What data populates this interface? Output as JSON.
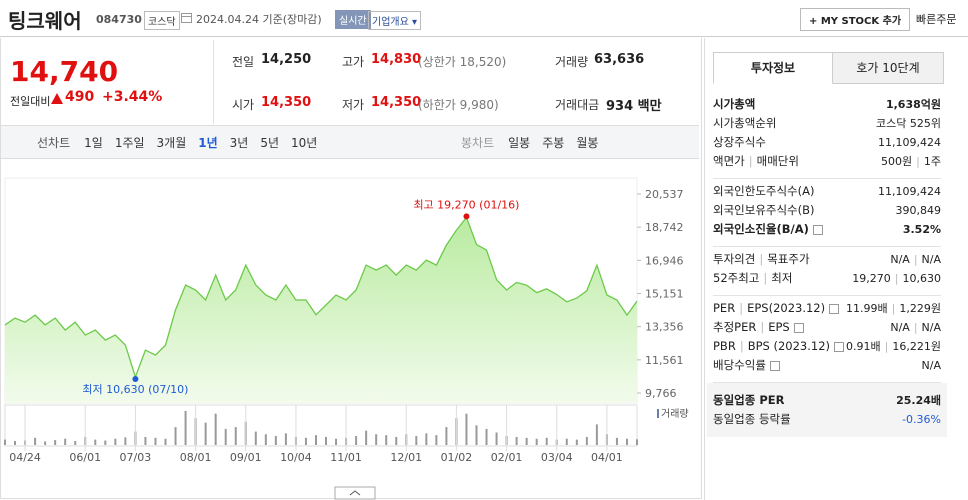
{
  "header": {
    "name": "팅크웨어",
    "code": "084730",
    "market": "코스닥",
    "date": "2024.04.24 기준(장마감)",
    "realtime": "실시간",
    "company_menu": "기업개요",
    "my_stock": "+ MY STOCK 추가",
    "quick_order": "빠른주문"
  },
  "price": {
    "current": "14,740",
    "change_label": "전일대비",
    "change": "490",
    "change_rate": "+3.44%"
  },
  "stats": [
    [
      "전일",
      "14,250"
    ],
    [
      "고가",
      "14,830",
      "(상한가 18,520)"
    ],
    [
      "거래량",
      "63,636"
    ],
    [
      "시가",
      "14,350"
    ],
    [
      "저가",
      "14,350",
      "(하한가 9,980)"
    ],
    [
      "거래대금",
      "934 백만"
    ]
  ],
  "periods": {
    "label": "선차트",
    "items": [
      "1일",
      "1주일",
      "3개월",
      "1년",
      "3년",
      "5년",
      "10년"
    ],
    "selected": 3,
    "candle_label": "봉차트",
    "candle_items": [
      "일봉",
      "주봉",
      "월봉"
    ]
  },
  "chart": {
    "type": "area",
    "color": "#6cc94a",
    "values": [
      13450,
      13820,
      13600,
      13980,
      13450,
      13820,
      13170,
      13600,
      12900,
      13170,
      12630,
      12900,
      12360,
      10630,
      12090,
      11820,
      12360,
      14260,
      15610,
      15340,
      14800,
      16150,
      14800,
      15340,
      16690,
      15610,
      15070,
      14800,
      15610,
      14800,
      14800,
      14000,
      14530,
      15070,
      14800,
      15340,
      16690,
      16420,
      16690,
      16150,
      16690,
      16420,
      16960,
      16690,
      17770,
      18580,
      19270,
      17800,
      17500,
      15900,
      15340,
      15750,
      15600,
      15200,
      15400,
      15100,
      14700,
      14900,
      15300,
      16690,
      15070,
      14800,
      13980,
      14740
    ],
    "volume": [
      60000,
      45000,
      50000,
      80000,
      40000,
      55000,
      70000,
      45000,
      90000,
      60000,
      50000,
      70000,
      85000,
      150000,
      90000,
      80000,
      70000,
      200000,
      380000,
      300000,
      250000,
      350000,
      180000,
      200000,
      260000,
      150000,
      120000,
      100000,
      130000,
      90000,
      80000,
      110000,
      90000,
      70000,
      80000,
      100000,
      160000,
      120000,
      110000,
      90000,
      120000,
      100000,
      130000,
      110000,
      200000,
      300000,
      350000,
      220000,
      180000,
      140000,
      100000,
      90000,
      80000,
      70000,
      80000,
      60000,
      70000,
      60000,
      90000,
      230000,
      120000,
      80000,
      70000,
      63636
    ],
    "volume_label": "거래량",
    "ylim": [
      9766,
      20537
    ],
    "yticks": [
      {
        "value": 9766,
        "label": "9,766"
      },
      {
        "value": 11561,
        "label": "11,561"
      },
      {
        "value": 13356,
        "label": "13,356"
      },
      {
        "value": 15151,
        "label": "15,151"
      },
      {
        "value": 16946,
        "label": "16,946"
      },
      {
        "value": 18742,
        "label": "18,742"
      },
      {
        "value": 20537,
        "label": "20,537"
      }
    ],
    "xticks": [
      {
        "value": 2,
        "label": "04/24"
      },
      {
        "value": 8,
        "label": "06/01"
      },
      {
        "value": 13,
        "label": "07/03"
      },
      {
        "value": 19,
        "label": "08/01"
      },
      {
        "value": 24,
        "label": "09/01"
      },
      {
        "value": 29,
        "label": "10/04"
      },
      {
        "value": 34,
        "label": "11/01"
      },
      {
        "value": 40,
        "label": "12/01"
      },
      {
        "value": 45,
        "label": "01/02"
      },
      {
        "value": 50,
        "label": "02/01"
      },
      {
        "value": 55,
        "label": "03/04"
      },
      {
        "value": 60,
        "label": "04/01"
      }
    ],
    "high_label": "최고 19,270 (01/16)",
    "low_label": "최저 10,630 (07/10)"
  },
  "tabs": [
    "투자정보",
    "호가 10단계"
  ],
  "info": [
    [
      {
        "label": [
          "시가총액"
        ],
        "value": [
          "1,638억원"
        ],
        "strong": true
      },
      {
        "label": [
          "시가총액순위"
        ],
        "value": [
          "코스닥 525위"
        ]
      },
      {
        "label": [
          "상장주식수"
        ],
        "value": [
          "11,109,424"
        ]
      },
      {
        "label": [
          "액면가",
          "매매단위"
        ],
        "value": [
          "500원",
          "1주"
        ]
      }
    ],
    [
      {
        "label": [
          "외국인한도주식수(A)"
        ],
        "value": [
          "11,109,424"
        ]
      },
      {
        "label": [
          "외국인보유주식수(B)"
        ],
        "value": [
          "390,849"
        ]
      },
      {
        "label": [
          "외국인소진율(B/A)"
        ],
        "value": [
          "3.52%"
        ],
        "strong": true,
        "help": true
      }
    ],
    [
      {
        "label": [
          "투자의견",
          "목표주가"
        ],
        "value": [
          "N/A",
          "N/A"
        ]
      },
      {
        "label": [
          "52주최고",
          "최저"
        ],
        "value": [
          "19,270",
          "10,630"
        ]
      }
    ],
    [
      {
        "label": [
          "PER",
          "EPS(2023.12)"
        ],
        "value": [
          "11.99배",
          "1,229원"
        ],
        "help": true
      },
      {
        "label": [
          "추정PER",
          "EPS"
        ],
        "value": [
          "N/A",
          "N/A"
        ],
        "help": true
      },
      {
        "label": [
          "PBR",
          "BPS (2023.12)"
        ],
        "value": [
          "0.91배",
          "16,221원"
        ],
        "help": true
      },
      {
        "label": [
          "배당수익률"
        ],
        "value": [
          "N/A"
        ],
        "help": true
      }
    ],
    [
      {
        "label": [
          "동일업종 PER"
        ],
        "value": [
          "25.24배"
        ],
        "strong": true
      },
      {
        "label": [
          "동일업종 등락률"
        ],
        "value": [
          "-0.36%"
        ],
        "color": "#1f5bd6"
      }
    ]
  ]
}
